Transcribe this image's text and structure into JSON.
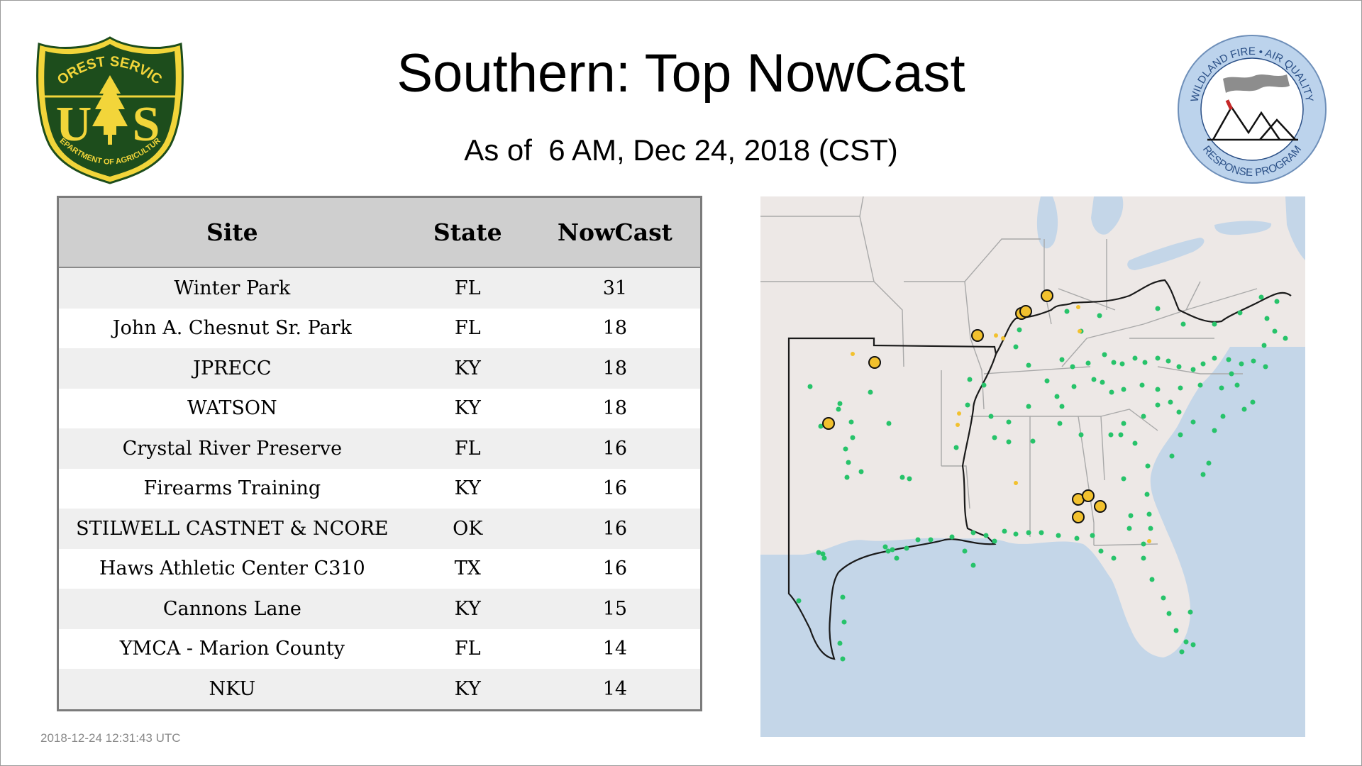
{
  "header": {
    "title": "Southern: Top NowCast",
    "subtitle": "As of  6 AM, Dec 24, 2018 (CST)"
  },
  "logos": {
    "forest_service": {
      "top_text": "FOREST SERVICE",
      "initials": "US",
      "bottom_text": "DEPARTMENT OF AGRICULTURE",
      "colors": {
        "shield": "#1d4d1c",
        "trim": "#f2d53a",
        "tree": "#f2d53a"
      }
    },
    "wildland": {
      "top_text": "WILDLAND FIRE • AIR QUALITY",
      "bottom_text": "RESPONSE PROGRAM",
      "colors": {
        "ring": "#b8d0ea",
        "text": "#2a4f86"
      }
    }
  },
  "table": {
    "columns": [
      "Site",
      "State",
      "NowCast"
    ],
    "rows": [
      {
        "site": "Winter Park",
        "state": "FL",
        "nowcast": "31"
      },
      {
        "site": "John A. Chesnut Sr. Park",
        "state": "FL",
        "nowcast": "18"
      },
      {
        "site": "JPRECC",
        "state": "KY",
        "nowcast": "18"
      },
      {
        "site": "WATSON",
        "state": "KY",
        "nowcast": "18"
      },
      {
        "site": "Crystal River Preserve",
        "state": "FL",
        "nowcast": "16"
      },
      {
        "site": "Firearms Training",
        "state": "KY",
        "nowcast": "16"
      },
      {
        "site": "STILWELL CASTNET & NCORE",
        "state": "OK",
        "nowcast": "16"
      },
      {
        "site": "Haws Athletic Center C310",
        "state": "TX",
        "nowcast": "16"
      },
      {
        "site": "Cannons Lane",
        "state": "KY",
        "nowcast": "15"
      },
      {
        "site": "YMCA - Marion County",
        "state": "FL",
        "nowcast": "14"
      },
      {
        "site": "NKU",
        "state": "KY",
        "nowcast": "14"
      }
    ]
  },
  "timestamp": "2018-12-24 12:31:43 UTC",
  "map": {
    "colors": {
      "land": "#ede8e6",
      "water": "#c4d6e8",
      "border": "#a9a9a9",
      "region_outline": "#1a1a1a",
      "good_marker": "#27c36a",
      "moderate_marker": "#f2c12e",
      "marker_stroke": "#111111"
    }
  }
}
